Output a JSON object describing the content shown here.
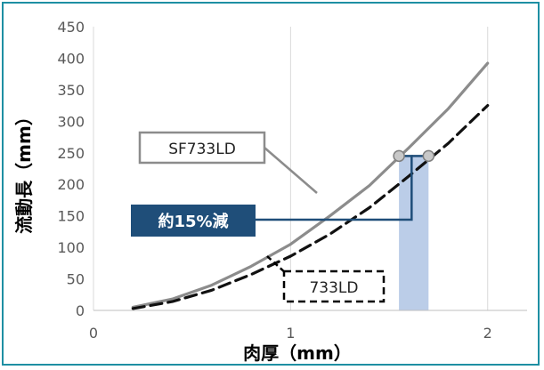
{
  "chart_data": {
    "type": "line",
    "xlabel": "肉厚（mm）",
    "ylabel": "流動長（mm）",
    "xlim": [
      0,
      2.2
    ],
    "ylim": [
      0,
      450
    ],
    "x_ticks": [
      0,
      1,
      2
    ],
    "x_tick_labels": [
      "0",
      "1",
      "2"
    ],
    "y_ticks": [
      0,
      50,
      100,
      150,
      200,
      250,
      300,
      350,
      400,
      450
    ],
    "y_tick_labels": [
      "0",
      "50",
      "100",
      "150",
      "200",
      "250",
      "300",
      "350",
      "400",
      "450"
    ],
    "grid": "vertical",
    "series": [
      {
        "name": "SF733LD",
        "style": "solid",
        "color": "#8c8c8c",
        "x": [
          0.2,
          0.4,
          0.6,
          0.8,
          1.0,
          1.2,
          1.4,
          1.6,
          1.8,
          2.0
        ],
        "y": [
          5,
          18,
          40,
          70,
          105,
          150,
          198,
          258,
          320,
          392
        ]
      },
      {
        "name": "733LD",
        "style": "dashed",
        "color": "#111111",
        "x": [
          0.2,
          0.4,
          0.6,
          0.8,
          1.0,
          1.2,
          1.4,
          1.6,
          1.8,
          2.0
        ],
        "y": [
          3,
          14,
          32,
          57,
          86,
          121,
          163,
          213,
          265,
          325
        ]
      }
    ],
    "comparison": {
      "value": 245,
      "x_sf733ld": 1.55,
      "x_733ld": 1.7,
      "shade_color": "#b4c8e6",
      "line_color": "#1f4e79",
      "marker_color": "#c8c8c8"
    },
    "annotations": {
      "sf733ld_label": "SF733LD",
      "ld733_label": "733LD",
      "reduction_label": "約15%減",
      "reduction_color": "#1f4e79",
      "border_color": "#1e8fa3"
    }
  }
}
